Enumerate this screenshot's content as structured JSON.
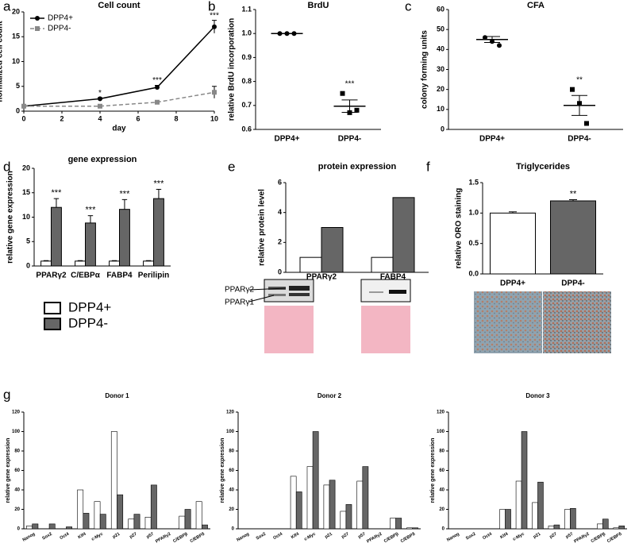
{
  "chart_data": [
    {
      "type": "line",
      "panel": "a",
      "title": "Cell count",
      "xlabel": "day",
      "ylabel": "normalized cell count",
      "x": [
        0,
        4,
        7,
        10
      ],
      "xlim": [
        0,
        10
      ],
      "xticks": [
        0,
        2,
        4,
        6,
        8,
        10
      ],
      "ylim": [
        0,
        20
      ],
      "yticks": [
        0,
        5,
        10,
        15,
        20
      ],
      "legend": "upper left",
      "series": [
        {
          "name": "DPP4+",
          "color": "#000000",
          "marker": "circle",
          "dash": false,
          "values": [
            1,
            2.5,
            4.8,
            17
          ],
          "errors": [
            0.1,
            0.2,
            0.4,
            1.3
          ]
        },
        {
          "name": "DPP4-",
          "color": "#888888",
          "marker": "square",
          "dash": true,
          "values": [
            1,
            1,
            1.8,
            3.8
          ],
          "errors": [
            0.1,
            0.2,
            0.3,
            1.2
          ]
        }
      ],
      "significance": [
        null,
        "*",
        "***",
        "***"
      ]
    },
    {
      "type": "dot",
      "panel": "b",
      "title": "BrdU",
      "ylabel": "relative BrdU incorporation",
      "categories": [
        "DPP4+",
        "DPP4-"
      ],
      "markers": [
        "circle",
        "square"
      ],
      "points": [
        [
          1,
          1,
          1
        ],
        [
          0.75,
          0.67,
          0.68
        ]
      ],
      "means": [
        1,
        0.697
      ],
      "errors": [
        0,
        0.026
      ],
      "ylim": [
        0.6,
        1.1
      ],
      "yticks": [
        0.6,
        0.7,
        0.8,
        0.9,
        {
          "value": 1,
          "label": "1.0"
        },
        1.1
      ],
      "significance": [
        null,
        "***"
      ]
    },
    {
      "type": "dot",
      "panel": "c",
      "title": "CFA",
      "ylabel": "colony forming units",
      "categories": [
        "DPP4+",
        "DPP4-"
      ],
      "markers": [
        "circle",
        "square"
      ],
      "points": [
        [
          46,
          44,
          42
        ],
        [
          20,
          13,
          3
        ]
      ],
      "means": [
        45,
        12
      ],
      "errors": [
        1.5,
        5
      ],
      "ylim": [
        0,
        60
      ],
      "yticks": [
        0,
        10,
        20,
        30,
        40,
        50,
        60
      ],
      "significance": [
        null,
        "**"
      ]
    },
    {
      "type": "bar",
      "panel": "d",
      "title": "gene expression",
      "ylabel": "relative gene expression",
      "categories": [
        "PPARγ2",
        "C/EBPα",
        "FABP4",
        "Perilipin"
      ],
      "ylim": [
        0,
        20
      ],
      "yticks": [
        0,
        5,
        10,
        15,
        20
      ],
      "legend": "below",
      "series": [
        {
          "name": "DPP4+",
          "color": "#ffffff",
          "values": [
            1,
            1,
            1,
            1
          ],
          "errors": [
            0.1,
            0.1,
            0.1,
            0.1
          ]
        },
        {
          "name": "DPP4-",
          "color": "#666666",
          "values": [
            12,
            8.8,
            11.6,
            13.8
          ],
          "errors": [
            1.8,
            1.5,
            2,
            1.9
          ]
        }
      ],
      "significance": [
        "***",
        "***",
        "***",
        "***"
      ]
    },
    {
      "type": "bar",
      "panel": "e",
      "title": "protein expression",
      "ylabel": "relative protein level",
      "categories": [
        "PPARγ2",
        "FABP4"
      ],
      "ylim": [
        0,
        6
      ],
      "yticks": [
        0,
        2,
        4,
        6
      ],
      "series": [
        {
          "color": "#ffffff",
          "values": [
            1,
            1
          ]
        },
        {
          "color": "#666666",
          "values": [
            3,
            5
          ]
        }
      ],
      "blot_labels": [
        "PPARγ2",
        "PPARγ1"
      ]
    },
    {
      "type": "bar",
      "panel": "f",
      "title": "Triglycerides",
      "ylabel": "relative ORO staining",
      "categories": [
        "DPP4+",
        "DPP4-"
      ],
      "ylim": [
        0,
        1.5
      ],
      "yticks": [
        {
          "value": 0,
          "label": "0.0"
        },
        0.5,
        {
          "value": 1,
          "label": "1.0"
        },
        1.5
      ],
      "series": [
        {
          "colors": [
            "#ffffff",
            "#666666"
          ],
          "values": [
            1,
            1.2
          ],
          "errors": [
            0.02,
            0.02
          ]
        }
      ],
      "significance": [
        null,
        "**"
      ]
    },
    {
      "type": "bar",
      "panel": "g",
      "title": "Donor 1",
      "ylabel": "relative gene expression",
      "categories": [
        "Nanog",
        "Sox2",
        "Oct4",
        "Klf4",
        "c-Myc",
        "p21",
        "p27",
        "p57",
        "PPARγ2",
        "C/EBPβ",
        "C/EBPδ"
      ],
      "ylim": [
        0,
        120
      ],
      "yticks": [
        0,
        20,
        40,
        60,
        80,
        100,
        120
      ],
      "series": [
        {
          "color": "#ffffff",
          "values": [
            3,
            0,
            0,
            40,
            28,
            100,
            10,
            12,
            0,
            13,
            28
          ]
        },
        {
          "color": "#666666",
          "values": [
            5,
            5,
            2,
            16,
            15,
            35,
            15,
            45,
            0,
            20,
            4
          ]
        }
      ]
    },
    {
      "type": "bar",
      "title": "Donor 2",
      "ylabel": "relative gene expression",
      "categories": [
        "Nanog",
        "Sox2",
        "Oct4",
        "Klf4",
        "c-Myc",
        "p21",
        "p27",
        "p57",
        "PPARγ2",
        "C/EBPβ",
        "C/EBPδ"
      ],
      "ylim": [
        0,
        120
      ],
      "yticks": [
        0,
        20,
        40,
        60,
        80,
        100,
        120
      ],
      "series": [
        {
          "color": "#ffffff",
          "values": [
            0,
            0,
            0,
            54,
            64,
            45,
            18,
            49,
            0,
            11,
            1
          ]
        },
        {
          "color": "#666666",
          "values": [
            0,
            0,
            0,
            38,
            100,
            50,
            25,
            64,
            0,
            11,
            1
          ]
        }
      ]
    },
    {
      "type": "bar",
      "title": "Donor 3",
      "ylabel": "relative gene expression",
      "categories": [
        "Nanog",
        "Sox2",
        "Oct4",
        "Klf4",
        "c-Myc",
        "p21",
        "p27",
        "p57",
        "PPARγ2",
        "C/EBPβ",
        "C/EBPδ"
      ],
      "ylim": [
        0,
        120
      ],
      "yticks": [
        0,
        20,
        40,
        60,
        80,
        100,
        120
      ],
      "series": [
        {
          "color": "#ffffff",
          "values": [
            0,
            0,
            0,
            20,
            49,
            27,
            3,
            20,
            0,
            5,
            1
          ]
        },
        {
          "color": "#666666",
          "values": [
            0,
            0,
            0,
            20,
            100,
            48,
            4,
            21,
            0,
            10,
            3
          ]
        }
      ]
    }
  ]
}
